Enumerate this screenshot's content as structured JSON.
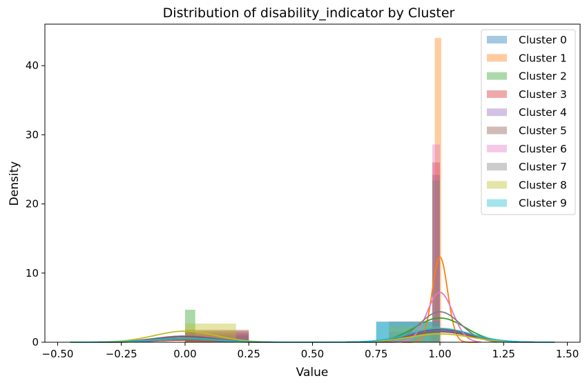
{
  "chart_data": {
    "type": "bar",
    "title": "Distribution of disability_indicator by Cluster",
    "xlabel": "Value",
    "ylabel": "Density",
    "xlim": [
      -0.55,
      1.55
    ],
    "ylim": [
      0,
      46
    ],
    "xticks": [
      "−0.50",
      "−0.25",
      "0.00",
      "0.25",
      "0.50",
      "0.75",
      "1.00",
      "1.25",
      "1.50"
    ],
    "xtick_values": [
      -0.5,
      -0.25,
      0.0,
      0.25,
      0.5,
      0.75,
      1.0,
      1.25,
      1.5
    ],
    "yticks": [
      "0",
      "10",
      "20",
      "30",
      "40"
    ],
    "ytick_values": [
      0,
      10,
      20,
      30,
      40
    ],
    "grid": false,
    "legend_position": "top-right",
    "series": [
      {
        "name": "Cluster 0",
        "color": "#1f77b4",
        "bars": [
          {
            "x0": 0.0,
            "x1": 0.25,
            "h": 1.0
          },
          {
            "x0": 0.75,
            "x1": 1.0,
            "h": 3.0
          }
        ],
        "kde": {
          "range": [
            -0.45,
            1.45
          ],
          "peaks": [
            {
              "mu": 0.0,
              "sigma": 0.12,
              "h": 0.8
            },
            {
              "mu": 1.0,
              "sigma": 0.12,
              "h": 1.7
            }
          ]
        }
      },
      {
        "name": "Cluster 1",
        "color": "#ff7f0e",
        "bars": [
          {
            "x0": 0.98,
            "x1": 1.005,
            "h": 44.0
          }
        ],
        "kde": {
          "range": [
            0.85,
            1.15
          ],
          "peaks": [
            {
              "mu": 1.0,
              "sigma": 0.03,
              "h": 12.3
            }
          ]
        }
      },
      {
        "name": "Cluster 2",
        "color": "#2ca02c",
        "bars": [
          {
            "x0": 0.0,
            "x1": 0.04,
            "h": 4.7
          },
          {
            "x0": 0.96,
            "x1": 1.0,
            "h": 2.0
          }
        ],
        "kde": {
          "range": [
            -0.45,
            1.45
          ],
          "peaks": [
            {
              "mu": 0.0,
              "sigma": 0.1,
              "h": 0.5
            },
            {
              "mu": 1.0,
              "sigma": 0.1,
              "h": 3.5
            }
          ]
        }
      },
      {
        "name": "Cluster 3",
        "color": "#d62728",
        "bars": [
          {
            "x0": 0.0,
            "x1": 0.25,
            "h": 1.6
          },
          {
            "x0": 0.97,
            "x1": 1.0,
            "h": 26.0
          }
        ],
        "kde": {
          "range": [
            -0.45,
            1.45
          ],
          "peaks": [
            {
              "mu": 0.0,
              "sigma": 0.12,
              "h": 0.3
            },
            {
              "mu": 1.0,
              "sigma": 0.12,
              "h": 1.9
            }
          ]
        }
      },
      {
        "name": "Cluster 4",
        "color": "#9467bd",
        "bars": [
          {
            "x0": 0.0,
            "x1": 0.25,
            "h": 1.3
          },
          {
            "x0": 0.8,
            "x1": 1.0,
            "h": 1.5
          }
        ],
        "kde": {
          "range": [
            -0.45,
            1.45
          ],
          "peaks": [
            {
              "mu": 0.0,
              "sigma": 0.12,
              "h": 0.9
            },
            {
              "mu": 1.0,
              "sigma": 0.12,
              "h": 1.6
            }
          ]
        }
      },
      {
        "name": "Cluster 5",
        "color": "#8c564b",
        "bars": [
          {
            "x0": 0.0,
            "x1": 0.25,
            "h": 1.8
          },
          {
            "x0": 0.97,
            "x1": 1.0,
            "h": 24.2
          }
        ],
        "kde": {
          "range": [
            -0.45,
            1.45
          ],
          "peaks": [
            {
              "mu": 0.0,
              "sigma": 0.12,
              "h": 0.8
            },
            {
              "mu": 1.0,
              "sigma": 0.12,
              "h": 1.5
            }
          ]
        }
      },
      {
        "name": "Cluster 6",
        "color": "#e377c2",
        "bars": [
          {
            "x0": 0.97,
            "x1": 1.0,
            "h": 28.6
          }
        ],
        "kde": {
          "range": [
            0.7,
            1.16
          ],
          "peaks": [
            {
              "mu": 1.0,
              "sigma": 0.05,
              "h": 7.2
            }
          ]
        }
      },
      {
        "name": "Cluster 7",
        "color": "#7f7f7f",
        "bars": [
          {
            "x0": 0.8,
            "x1": 1.0,
            "h": 3.0
          },
          {
            "x0": 0.97,
            "x1": 1.0,
            "h": 23.4
          }
        ],
        "kde": {
          "range": [
            -0.45,
            1.45
          ],
          "peaks": [
            {
              "mu": 0.0,
              "sigma": 0.1,
              "h": 0.4
            },
            {
              "mu": 1.0,
              "sigma": 0.08,
              "h": 4.4
            }
          ]
        }
      },
      {
        "name": "Cluster 8",
        "color": "#bcbd22",
        "bars": [
          {
            "x0": 0.0,
            "x1": 0.2,
            "h": 2.7
          },
          {
            "x0": 0.8,
            "x1": 1.0,
            "h": 2.3
          }
        ],
        "kde": {
          "range": [
            -0.45,
            1.45
          ],
          "peaks": [
            {
              "mu": 0.0,
              "sigma": 0.12,
              "h": 1.6
            },
            {
              "mu": 1.0,
              "sigma": 0.12,
              "h": 1.2
            }
          ]
        }
      },
      {
        "name": "Cluster 9",
        "color": "#17becf",
        "bars": [
          {
            "x0": 0.75,
            "x1": 1.0,
            "h": 2.9
          }
        ],
        "kde": {
          "range": [
            -0.45,
            1.45
          ],
          "peaks": [
            {
              "mu": 0.0,
              "sigma": 0.12,
              "h": 0.6
            },
            {
              "mu": 1.0,
              "sigma": 0.12,
              "h": 2.0
            }
          ]
        }
      }
    ]
  }
}
